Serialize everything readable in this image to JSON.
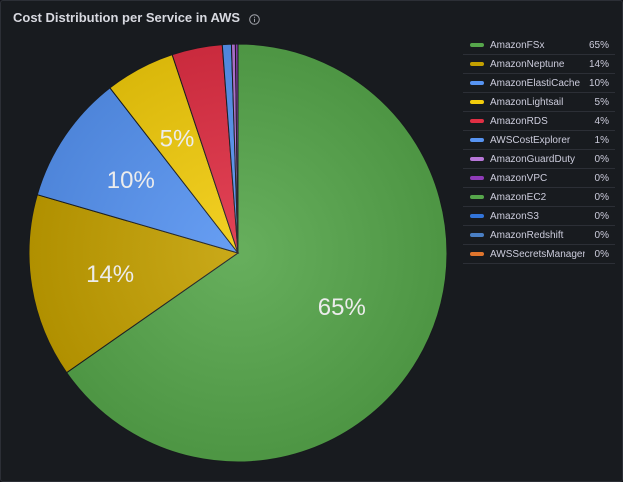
{
  "panel": {
    "title": "Cost Distribution per Service in AWS",
    "info_icon": "info-circle-icon"
  },
  "chart_data": {
    "type": "pie",
    "title": "Cost Distribution per Service in AWS",
    "legend_placement": "right",
    "slices": [
      {
        "label": "AmazonFSx",
        "value": 65.3,
        "display": "65%",
        "color": "#56a64b"
      },
      {
        "label": "AmazonNeptune",
        "value": 14.2,
        "display": "14%",
        "color": "#c4a000"
      },
      {
        "label": "AmazonElastiCache",
        "value": 10.0,
        "display": "10%",
        "color": "#5794f2"
      },
      {
        "label": "AmazonLightsail",
        "value": 5.4,
        "display": "5%",
        "color": "#f2cc0c"
      },
      {
        "label": "AmazonRDS",
        "value": 3.9,
        "display": "4%",
        "color": "#e02f44"
      },
      {
        "label": "AWSCostExplorer",
        "value": 0.7,
        "display": "1%",
        "color": "#5794f2"
      },
      {
        "label": "AmazonGuardDuty",
        "value": 0.3,
        "display": "0%",
        "color": "#b877d9"
      },
      {
        "label": "AmazonVPC",
        "value": 0.2,
        "display": "0%",
        "color": "#8f3bb8"
      },
      {
        "label": "AmazonEC2",
        "value": 0.0,
        "display": "0%",
        "color": "#56a64b"
      },
      {
        "label": "AmazonS3",
        "value": 0.0,
        "display": "0%",
        "color": "#3274d9"
      },
      {
        "label": "AmazonRedshift",
        "value": 0.0,
        "display": "0%",
        "color": "#4a7fc4"
      },
      {
        "label": "AWSSecretsManager",
        "value": 0.0,
        "display": "0%",
        "color": "#e0752d"
      }
    ]
  }
}
